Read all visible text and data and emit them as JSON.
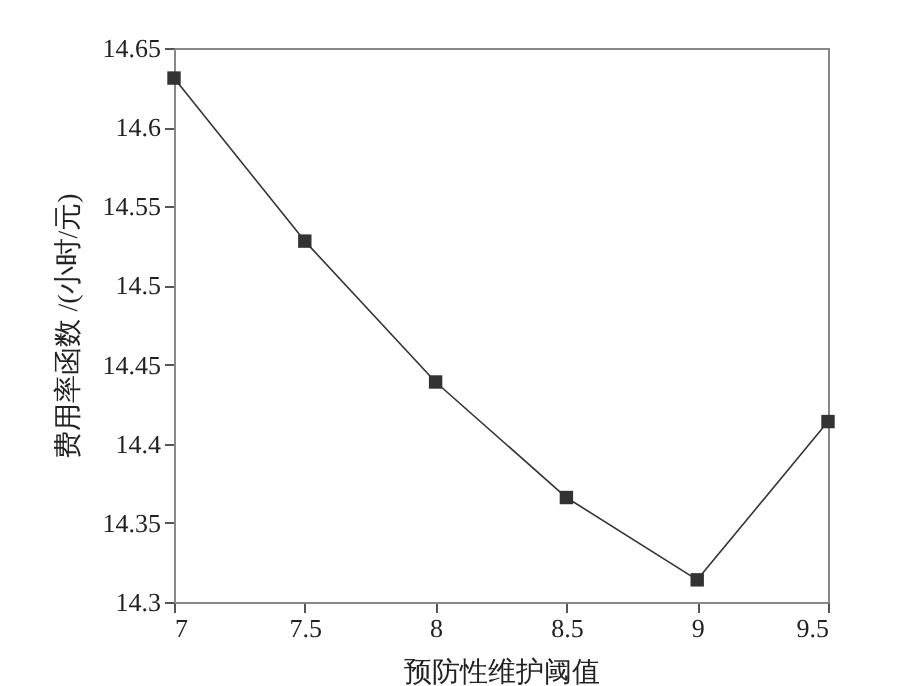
{
  "chart_data": {
    "type": "line",
    "xlabel": "预防性维护阈值",
    "ylabel": "费用率函数 /(小时/元)",
    "x": [
      7,
      7.5,
      8,
      8.5,
      9,
      9.5
    ],
    "series": [
      {
        "color": "#333333",
        "values": [
          14.631,
          14.528,
          14.439,
          14.366,
          14.314,
          14.414
        ]
      }
    ],
    "xlim": [
      7,
      9.5
    ],
    "xticks": [
      7,
      7.5,
      8,
      8.5,
      9,
      9.5
    ],
    "ylim": [
      14.3,
      14.65
    ],
    "yticks": [
      14.3,
      14.35,
      14.4,
      14.45,
      14.5,
      14.55,
      14.6,
      14.65
    ],
    "grid": false,
    "marker": "square",
    "line_style": "solid"
  }
}
